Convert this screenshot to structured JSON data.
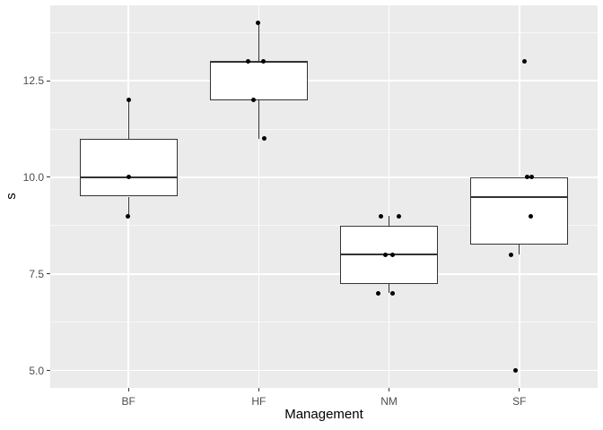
{
  "chart_data": {
    "type": "boxplot",
    "title": "",
    "xlabel": "Management",
    "ylabel": "s",
    "categories": [
      "BF",
      "HF",
      "NM",
      "SF"
    ],
    "y_major_ticks": [
      5.0,
      7.5,
      10.0,
      12.5
    ],
    "y_tick_labels": [
      "5.0",
      "7.5",
      "10.0",
      "12.5"
    ],
    "y_minor_ticks": [
      6.25,
      8.75,
      11.25,
      13.75
    ],
    "ylim": [
      4.55,
      14.45
    ],
    "grid": "on",
    "legend": "none",
    "boxes": [
      {
        "category": "BF",
        "whisker_low": 9,
        "q1": 9.5,
        "median": 10,
        "q3": 11,
        "whisker_high": 12,
        "outliers": [],
        "points": [
          [
            12,
            0.5
          ],
          [
            10,
            0.5
          ],
          [
            9,
            -0.5
          ]
        ]
      },
      {
        "category": "HF",
        "whisker_low": 11,
        "q1": 12,
        "median": 13,
        "q3": 13,
        "whisker_high": 14,
        "outliers": [],
        "points": [
          [
            14,
            -0.5
          ],
          [
            13,
            -11.5
          ],
          [
            13,
            5.5
          ],
          [
            12,
            -5.5
          ],
          [
            11,
            6.5
          ]
        ]
      },
      {
        "category": "NM",
        "whisker_low": 7,
        "q1": 7.25,
        "median": 8,
        "q3": 8.75,
        "whisker_high": 9,
        "outliers": [],
        "points": [
          [
            9,
            -9.5
          ],
          [
            9,
            10.5
          ],
          [
            8,
            -4.5
          ],
          [
            8,
            3.5
          ],
          [
            7,
            -12.5
          ],
          [
            7,
            3.5
          ]
        ]
      },
      {
        "category": "SF",
        "whisker_low": 8,
        "q1": 8.25,
        "median": 9.5,
        "q3": 10,
        "whisker_high": 10,
        "outliers": [
          13,
          5
        ],
        "points": [
          [
            13,
            5.5
          ],
          [
            10,
            8.5
          ],
          [
            10,
            13.5
          ],
          [
            9,
            12.5
          ],
          [
            8,
            -9.5
          ],
          [
            5,
            -4
          ]
        ]
      }
    ],
    "colors": {
      "background": "#FFFFFF",
      "panel_bg": "#EBEBEB",
      "grid": "#FFFFFF",
      "box_border": "#333333",
      "box_fill": "#FFFFFF",
      "point": "#000000",
      "tick_mark": "#333333",
      "tick_label": "#4D4D4D",
      "axis_title": "#000000"
    }
  }
}
